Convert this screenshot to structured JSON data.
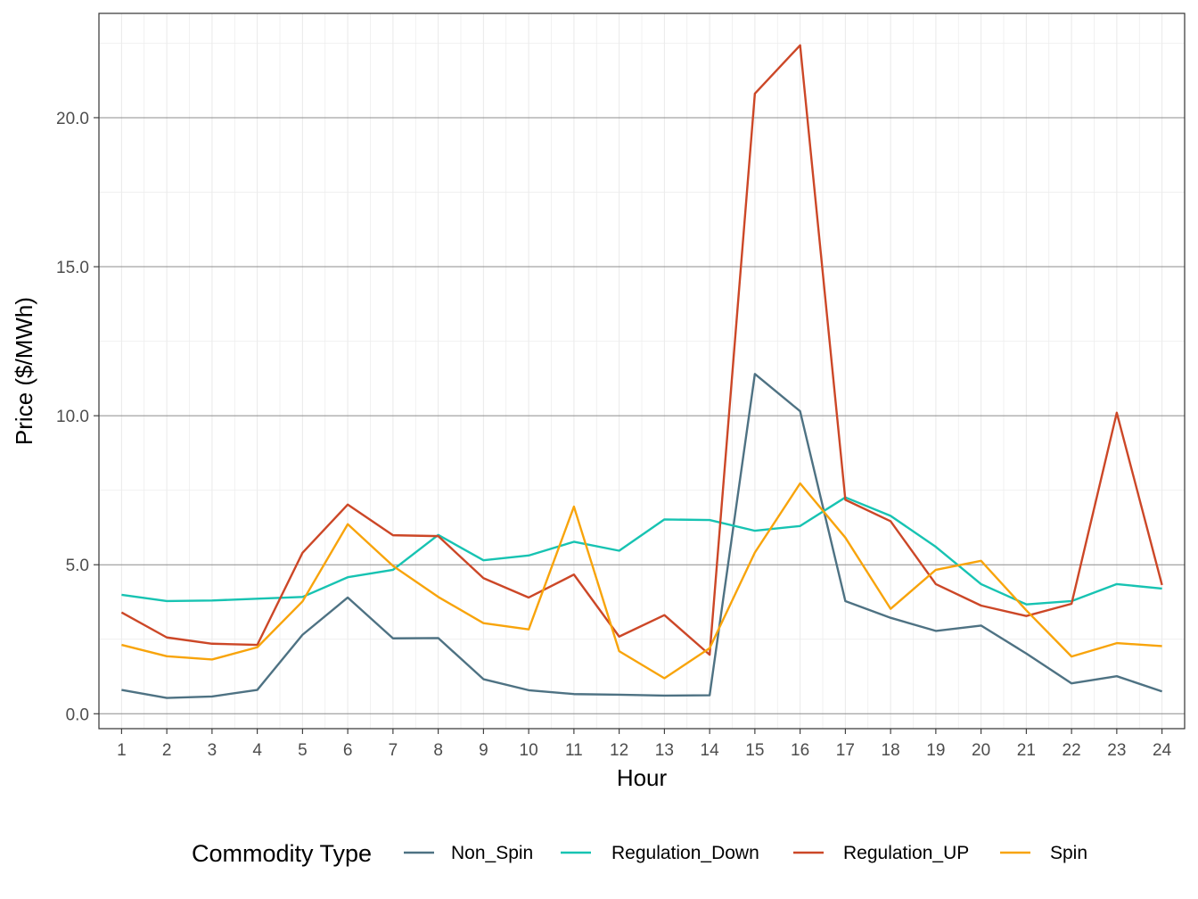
{
  "chart_data": {
    "type": "line",
    "xlabel": "Hour",
    "ylabel": "Price ($/MWh)",
    "x": [
      1,
      2,
      3,
      4,
      5,
      6,
      7,
      8,
      9,
      10,
      11,
      12,
      13,
      14,
      15,
      16,
      17,
      18,
      19,
      20,
      21,
      22,
      23,
      24
    ],
    "x_tick_labels": [
      "1",
      "2",
      "3",
      "4",
      "5",
      "6",
      "7",
      "8",
      "9",
      "10",
      "11",
      "12",
      "13",
      "14",
      "15",
      "16",
      "17",
      "18",
      "19",
      "20",
      "21",
      "22",
      "23",
      "24"
    ],
    "y_ticks": [
      0,
      5,
      10,
      15,
      20
    ],
    "y_tick_labels": [
      "0.0",
      "5.0",
      "10.0",
      "15.0",
      "20.0"
    ],
    "xlim": [
      0.5,
      24.5
    ],
    "ylim": [
      -0.5,
      23.5
    ],
    "grid": true,
    "legend": {
      "title": "Commodity Type",
      "placement": "bottom"
    },
    "series": [
      {
        "name": "Non_Spin",
        "color": "#4e7283",
        "values": [
          0.8,
          0.53,
          0.58,
          0.8,
          2.65,
          3.9,
          2.53,
          2.54,
          1.16,
          0.79,
          0.66,
          0.64,
          0.61,
          0.62,
          11.4,
          10.15,
          3.78,
          3.22,
          2.78,
          2.96,
          2.02,
          1.02,
          1.26,
          0.75
        ]
      },
      {
        "name": "Regulation_Down",
        "color": "#17c3b2",
        "values": [
          3.99,
          3.78,
          3.8,
          3.86,
          3.92,
          4.58,
          4.83,
          6.0,
          5.15,
          5.31,
          5.77,
          5.47,
          6.52,
          6.5,
          6.14,
          6.3,
          7.26,
          6.64,
          5.6,
          4.35,
          3.67,
          3.78,
          4.35,
          4.2
        ]
      },
      {
        "name": "Regulation_UP",
        "color": "#cc4727",
        "values": [
          3.4,
          2.56,
          2.35,
          2.31,
          5.4,
          7.02,
          5.99,
          5.96,
          4.55,
          3.9,
          4.67,
          2.59,
          3.31,
          1.98,
          20.81,
          22.43,
          7.18,
          6.46,
          4.35,
          3.63,
          3.28,
          3.69,
          10.1,
          4.32
        ]
      },
      {
        "name": "Spin",
        "color": "#f8a40b",
        "values": [
          2.31,
          1.93,
          1.82,
          2.23,
          3.77,
          6.36,
          4.96,
          3.92,
          3.04,
          2.83,
          6.95,
          2.1,
          1.19,
          2.2,
          5.41,
          7.73,
          5.91,
          3.52,
          4.83,
          5.13,
          3.47,
          1.92,
          2.37,
          2.27
        ]
      }
    ]
  }
}
